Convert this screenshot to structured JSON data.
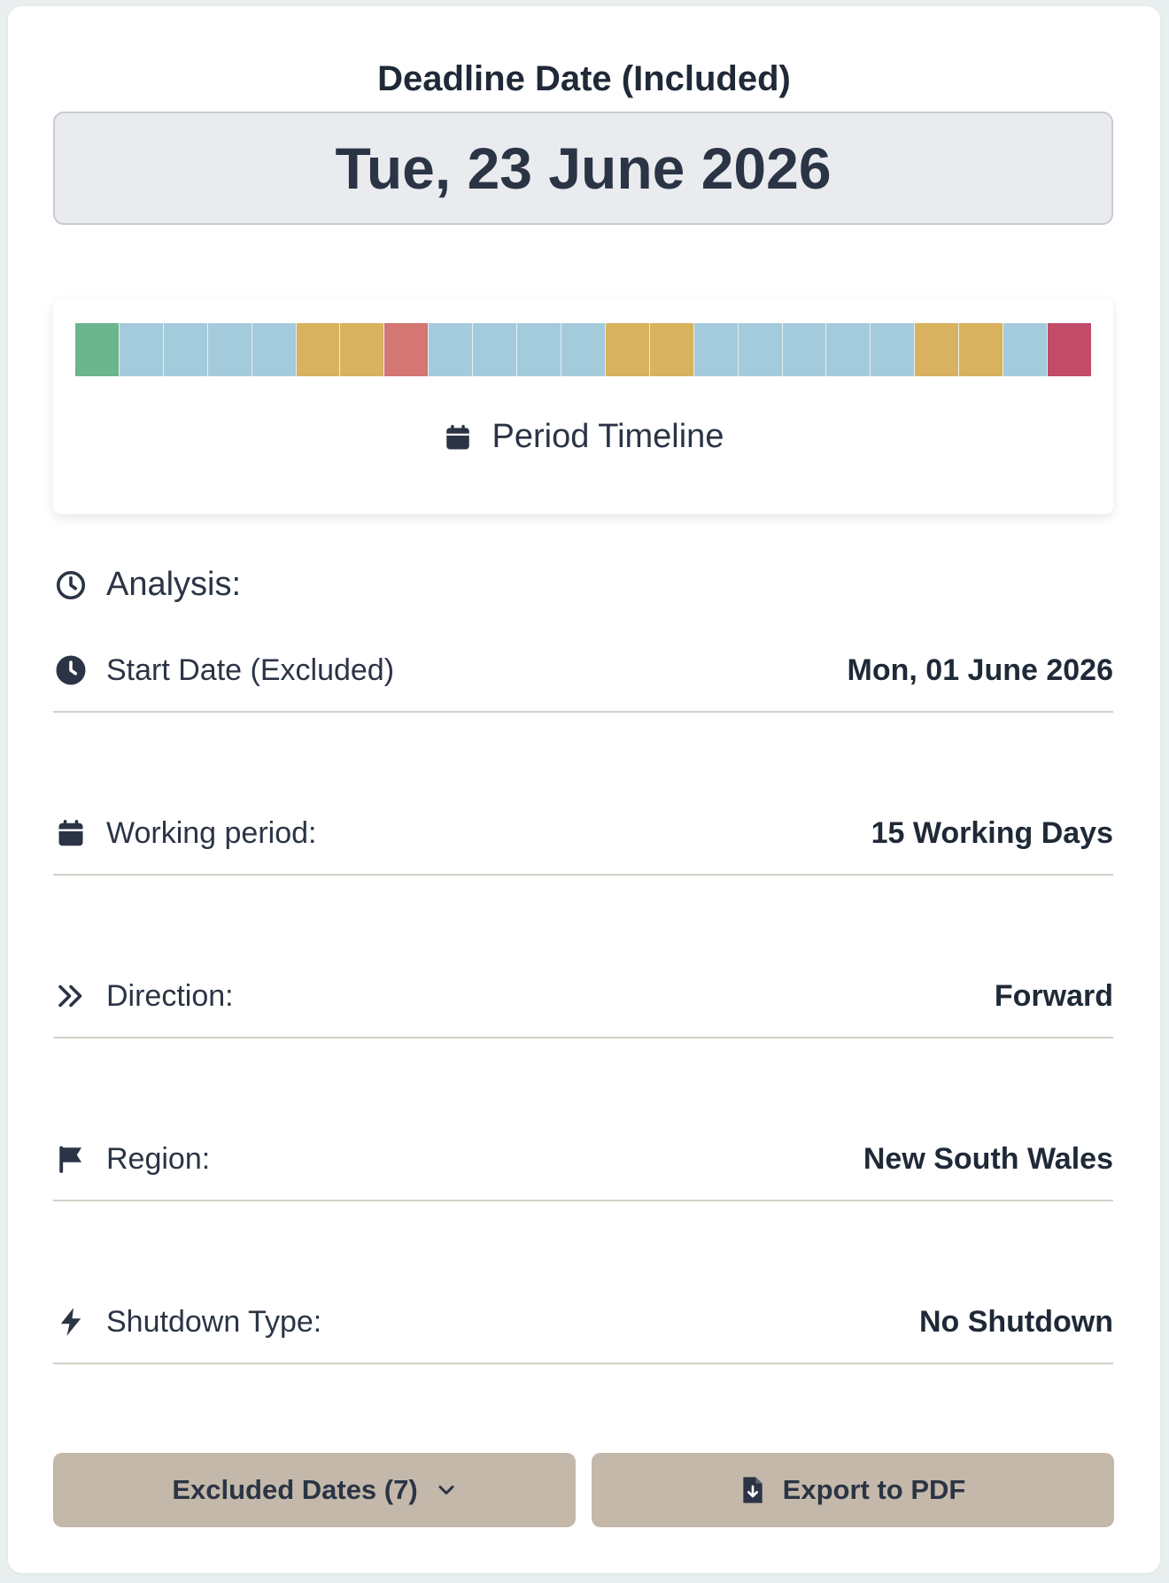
{
  "deadline": {
    "title": "Deadline Date (Included)",
    "date": "Tue, 23 June 2026"
  },
  "timeline": {
    "label": "Period Timeline",
    "icon": "calendar-icon",
    "segments": [
      "#6bb58f",
      "#a4cbdc",
      "#a4cbdc",
      "#a4cbdc",
      "#a4cbdc",
      "#d8b25f",
      "#d8b25f",
      "#d47671",
      "#a4cbdc",
      "#a4cbdc",
      "#a4cbdc",
      "#a4cbdc",
      "#d8b25f",
      "#d8b25f",
      "#a4cbdc",
      "#a4cbdc",
      "#a4cbdc",
      "#a4cbdc",
      "#a4cbdc",
      "#d8b25f",
      "#d8b25f",
      "#a4cbdc",
      "#c24b6a"
    ]
  },
  "analysis": {
    "heading": "Analysis:",
    "rows": [
      {
        "icon": "clock-icon",
        "label": "Start Date (Excluded)",
        "value": "Mon, 01 June 2026"
      },
      {
        "icon": "calendar-icon",
        "label": "Working period:",
        "value": "15 Working Days"
      },
      {
        "icon": "double-chevron-right-icon",
        "label": "Direction:",
        "value": "Forward"
      },
      {
        "icon": "flag-icon",
        "label": "Region:",
        "value": "New South Wales"
      },
      {
        "icon": "bolt-icon",
        "label": "Shutdown Type:",
        "value": "No Shutdown"
      }
    ]
  },
  "buttons": {
    "excluded": "Excluded Dates (7)",
    "export": "Export to PDF"
  },
  "colors": {
    "accent": "#c4b8aa",
    "text": "#2b3445"
  }
}
